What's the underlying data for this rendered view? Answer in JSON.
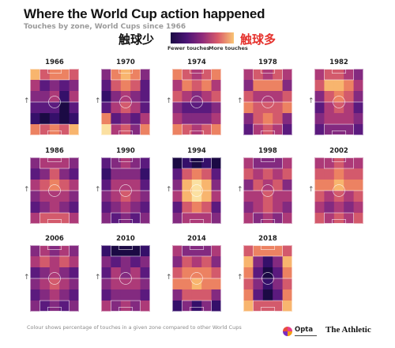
{
  "header": {
    "title": "Where the World Cup action happened",
    "subtitle": "Touches by zone, World Cups since 1966"
  },
  "legend": {
    "left_cjk": "触球少",
    "right_cjk": "触球多",
    "fewer_label": "Fewer touches",
    "more_label": "More touches",
    "arrow_glyph": "↑"
  },
  "colors": {
    "scale": [
      "#1b0a44",
      "#35106a",
      "#5b1a7e",
      "#832a80",
      "#ad3a78",
      "#d35a6c",
      "#ec8262",
      "#f8b56e",
      "#fbe0a1"
    ],
    "pitch_line": "rgba(255,255,255,0.75)",
    "accent_red": "#e5322d"
  },
  "footer": {
    "note": "Colour shows percentage of touches in a given zone compared to other World Cups",
    "opta": "Opta",
    "athletic": "The Athletic"
  },
  "chart_data": {
    "type": "heatmap",
    "grid": {
      "columns": 5,
      "rows": 6
    },
    "value_scale": "relative, 0 = fewer touches, 8 = more touches",
    "panels": [
      {
        "year": "1966",
        "cells": [
          [
            7,
            5,
            6,
            6,
            5
          ],
          [
            4,
            2,
            3,
            2,
            3
          ],
          [
            3,
            3,
            4,
            1,
            4
          ],
          [
            2,
            2,
            2,
            0,
            2
          ],
          [
            1,
            0,
            1,
            0,
            1
          ],
          [
            6,
            5,
            6,
            5,
            7
          ]
        ]
      },
      {
        "year": "1970",
        "cells": [
          [
            3,
            6,
            7,
            6,
            3
          ],
          [
            2,
            5,
            6,
            5,
            2
          ],
          [
            1,
            3,
            4,
            3,
            2
          ],
          [
            2,
            4,
            5,
            4,
            2
          ],
          [
            6,
            2,
            3,
            2,
            4
          ],
          [
            8,
            4,
            5,
            3,
            6
          ]
        ]
      },
      {
        "year": "1974",
        "cells": [
          [
            6,
            5,
            4,
            5,
            6
          ],
          [
            4,
            6,
            5,
            6,
            4
          ],
          [
            5,
            4,
            3,
            4,
            5
          ],
          [
            3,
            2,
            2,
            2,
            3
          ],
          [
            4,
            3,
            3,
            3,
            4
          ],
          [
            6,
            5,
            4,
            5,
            6
          ]
        ]
      },
      {
        "year": "1978",
        "cells": [
          [
            4,
            5,
            4,
            5,
            4
          ],
          [
            3,
            6,
            6,
            6,
            3
          ],
          [
            5,
            4,
            4,
            4,
            5
          ],
          [
            6,
            5,
            5,
            5,
            6
          ],
          [
            3,
            5,
            6,
            5,
            3
          ],
          [
            2,
            4,
            5,
            4,
            2
          ]
        ]
      },
      {
        "year": "1982",
        "cells": [
          [
            4,
            5,
            5,
            4,
            3
          ],
          [
            5,
            7,
            7,
            6,
            4
          ],
          [
            3,
            5,
            6,
            5,
            3
          ],
          [
            2,
            4,
            5,
            4,
            2
          ],
          [
            3,
            4,
            4,
            4,
            3
          ],
          [
            2,
            3,
            3,
            3,
            2
          ]
        ]
      },
      {
        "year": "1986",
        "cells": [
          [
            3,
            4,
            4,
            4,
            3
          ],
          [
            2,
            3,
            5,
            3,
            2
          ],
          [
            4,
            5,
            6,
            5,
            4
          ],
          [
            3,
            4,
            4,
            4,
            3
          ],
          [
            2,
            3,
            4,
            3,
            2
          ],
          [
            4,
            5,
            5,
            5,
            4
          ]
        ]
      },
      {
        "year": "1990",
        "cells": [
          [
            2,
            3,
            4,
            3,
            2
          ],
          [
            1,
            3,
            3,
            3,
            1
          ],
          [
            2,
            4,
            4,
            4,
            2
          ],
          [
            3,
            4,
            5,
            4,
            3
          ],
          [
            2,
            3,
            4,
            3,
            2
          ],
          [
            3,
            2,
            3,
            2,
            3
          ]
        ]
      },
      {
        "year": "1994",
        "cells": [
          [
            0,
            1,
            0,
            1,
            0
          ],
          [
            2,
            5,
            6,
            5,
            2
          ],
          [
            3,
            7,
            8,
            7,
            3
          ],
          [
            4,
            7,
            8,
            7,
            4
          ],
          [
            2,
            5,
            6,
            5,
            2
          ],
          [
            3,
            4,
            4,
            4,
            3
          ]
        ]
      },
      {
        "year": "1998",
        "cells": [
          [
            4,
            3,
            3,
            3,
            4
          ],
          [
            5,
            4,
            5,
            4,
            5
          ],
          [
            3,
            5,
            4,
            5,
            3
          ],
          [
            4,
            4,
            5,
            4,
            4
          ],
          [
            3,
            4,
            5,
            4,
            3
          ],
          [
            4,
            3,
            4,
            3,
            4
          ]
        ]
      },
      {
        "year": "2002",
        "cells": [
          [
            4,
            4,
            5,
            4,
            4
          ],
          [
            5,
            5,
            6,
            5,
            5
          ],
          [
            6,
            6,
            7,
            6,
            6
          ],
          [
            5,
            4,
            5,
            4,
            5
          ],
          [
            4,
            3,
            4,
            3,
            4
          ],
          [
            5,
            4,
            5,
            4,
            5
          ]
        ]
      },
      {
        "year": "2006",
        "cells": [
          [
            3,
            4,
            3,
            4,
            3
          ],
          [
            4,
            5,
            4,
            5,
            4
          ],
          [
            2,
            3,
            4,
            3,
            2
          ],
          [
            3,
            4,
            5,
            4,
            3
          ],
          [
            2,
            3,
            4,
            3,
            2
          ],
          [
            3,
            2,
            3,
            2,
            3
          ]
        ]
      },
      {
        "year": "2010",
        "cells": [
          [
            1,
            0,
            0,
            0,
            1
          ],
          [
            3,
            2,
            3,
            2,
            3
          ],
          [
            2,
            4,
            3,
            4,
            2
          ],
          [
            3,
            4,
            4,
            4,
            3
          ],
          [
            2,
            3,
            3,
            3,
            2
          ],
          [
            4,
            3,
            4,
            3,
            4
          ]
        ]
      },
      {
        "year": "2014",
        "cells": [
          [
            4,
            3,
            3,
            3,
            4
          ],
          [
            3,
            5,
            4,
            5,
            3
          ],
          [
            5,
            6,
            6,
            6,
            5
          ],
          [
            6,
            6,
            7,
            6,
            6
          ],
          [
            3,
            5,
            5,
            5,
            3
          ],
          [
            1,
            3,
            1,
            3,
            1
          ]
        ]
      },
      {
        "year": "2018",
        "cells": [
          [
            5,
            6,
            6,
            6,
            5
          ],
          [
            7,
            3,
            1,
            3,
            7
          ],
          [
            6,
            2,
            0,
            2,
            6
          ],
          [
            5,
            3,
            1,
            3,
            5
          ],
          [
            6,
            2,
            0,
            2,
            6
          ],
          [
            7,
            5,
            5,
            5,
            7
          ]
        ]
      }
    ]
  }
}
